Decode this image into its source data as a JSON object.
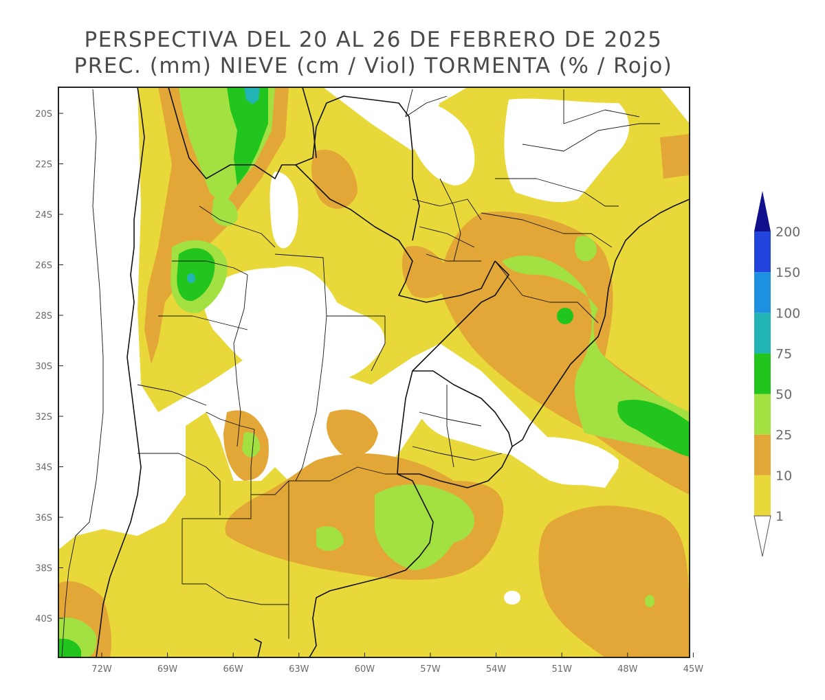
{
  "title": {
    "line1": "PERSPECTIVA DEL 20 AL 26 DE FEBRERO DE 2025",
    "line2": "PREC. (mm) NIEVE (cm / Viol) TORMENTA (% / Rojo)"
  },
  "axes": {
    "lat_labels": [
      "20S",
      "22S",
      "24S",
      "26S",
      "28S",
      "30S",
      "32S",
      "34S",
      "36S",
      "38S",
      "40S"
    ],
    "lon_labels": [
      "72W",
      "69W",
      "66W",
      "63W",
      "60W",
      "57W",
      "54W",
      "51W",
      "48W",
      "45W"
    ]
  },
  "colorbar": {
    "levels": [
      "1",
      "10",
      "25",
      "50",
      "75",
      "100",
      "150",
      "200"
    ],
    "colors": {
      "c1": "#e8d83a",
      "c10": "#e3a737",
      "c25": "#a3e042",
      "c50": "#22c41e",
      "c75": "#22b4b4",
      "c100": "#1e90e0",
      "c150": "#2244dd",
      "c200": "#10108c",
      "below": "#ffffff"
    }
  },
  "colors": {
    "border": "#111111",
    "frame": "#222222"
  }
}
